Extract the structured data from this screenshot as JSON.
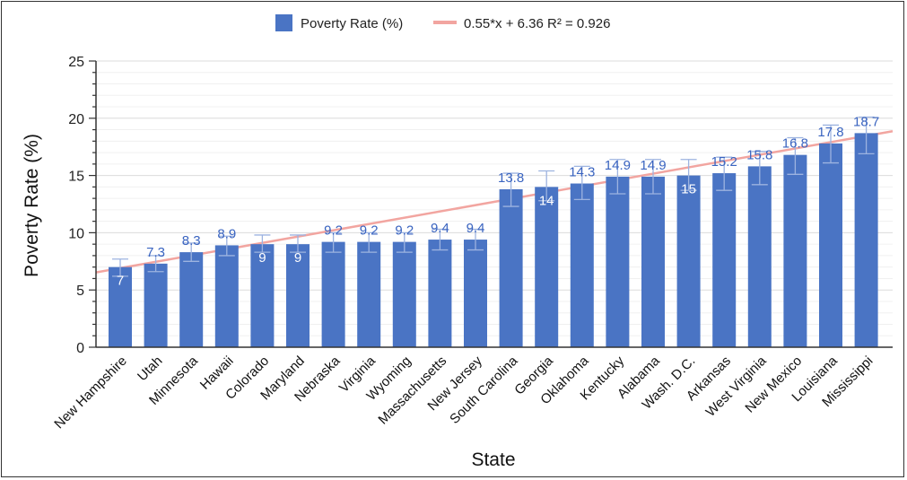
{
  "chart_data": {
    "type": "bar",
    "xlabel": "State",
    "ylabel": "Poverty Rate (%)",
    "ylim": [
      0,
      25
    ],
    "yticks": [
      0,
      5,
      10,
      15,
      20,
      25
    ],
    "grid": true,
    "legend_position": "top",
    "categories": [
      "New Hampshire",
      "Utah",
      "Minnesota",
      "Hawaii",
      "Colorado",
      "Maryland",
      "Nebraska",
      "Virginia",
      "Wyoming",
      "Massachusetts",
      "New Jersey",
      "South Carolina",
      "Georgia",
      "Oklahoma",
      "Kentucky",
      "Alabama",
      "Wash. D.C.",
      "Arkansas",
      "West Virginia",
      "New Mexico",
      "Louisiana",
      "Mississippi"
    ],
    "series": [
      {
        "name": "Poverty Rate (%)",
        "color": "#4a74c4",
        "values": [
          7,
          7.3,
          8.3,
          8.9,
          9,
          9,
          9.2,
          9.2,
          9.2,
          9.4,
          9.4,
          13.8,
          14,
          14.3,
          14.9,
          14.9,
          15,
          15.2,
          15.8,
          16.8,
          17.8,
          18.7
        ],
        "error_low": [
          6.2,
          6.6,
          7.5,
          8.0,
          8.3,
          8.3,
          8.3,
          8.3,
          8.3,
          8.5,
          8.5,
          12.3,
          12.8,
          12.9,
          13.4,
          13.4,
          13.7,
          13.7,
          14.2,
          15.1,
          16.1,
          16.9
        ],
        "error_high": [
          7.7,
          8.0,
          9.1,
          9.7,
          9.8,
          9.8,
          10.0,
          10.0,
          10.0,
          10.3,
          10.3,
          15.2,
          15.4,
          15.8,
          16.4,
          16.4,
          16.4,
          16.6,
          17.1,
          18.3,
          19.4,
          20.1
        ],
        "label_placement": [
          "inside",
          "above",
          "above",
          "above",
          "inside",
          "inside",
          "above",
          "above",
          "above",
          "above",
          "above",
          "above",
          "inside",
          "above",
          "above",
          "above",
          "inside",
          "above",
          "above",
          "above",
          "above",
          "above"
        ]
      }
    ],
    "trendline": {
      "name": "0.55*x + 6.36 R² = 0.926",
      "slope": 0.55,
      "intercept": 6.36,
      "color": "#f2a5a0"
    }
  }
}
